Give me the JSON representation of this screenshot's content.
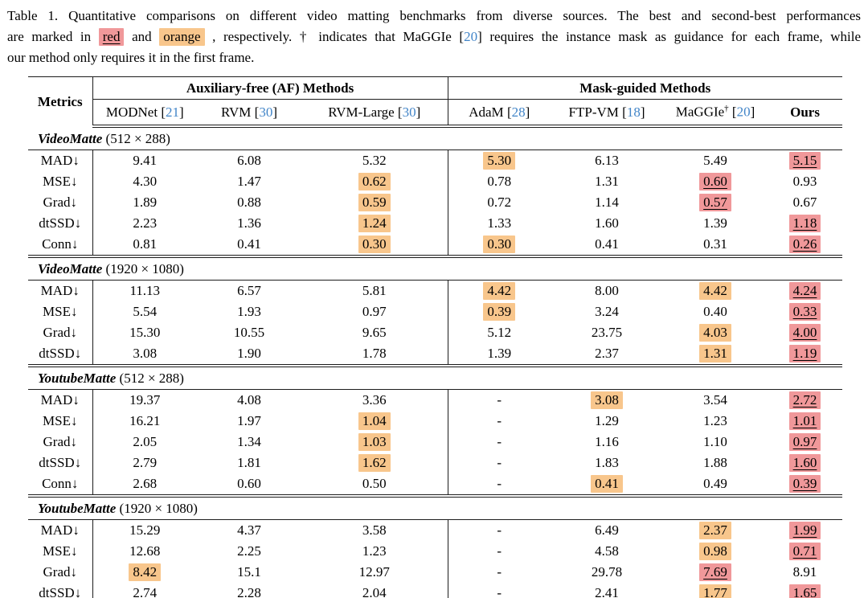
{
  "colors": {
    "highlight_best_red": "#f0989a",
    "highlight_second_orange": "#f8c68c",
    "citation_blue": "#4285c8"
  },
  "caption": {
    "lines": [
      [
        {
          "text": "Table 1. Quantitative comparisons on different video matting benchmarks from diverse sources. The best and second-best performances"
        }
      ],
      [
        {
          "text": "are marked in "
        },
        {
          "text": "red",
          "style": "hl-red"
        },
        {
          "text": " and "
        },
        {
          "text": "orange",
          "style": "hl-orange"
        },
        {
          "text": " , respectively. † indicates that MaGGIe ["
        },
        {
          "text": "20",
          "style": "cite"
        },
        {
          "text": "] requires the instance mask as guidance for each frame, while"
        }
      ],
      [
        {
          "text": "our method only requires it in the first frame."
        }
      ]
    ]
  },
  "header": {
    "metrics_label": "Metrics",
    "groups": [
      {
        "label": "Auxiliary-free (AF) Methods",
        "span": 3
      },
      {
        "label": "Mask-guided Methods",
        "span": 4
      }
    ],
    "methods": [
      {
        "name": "MODNet",
        "cite": "21"
      },
      {
        "name": "RVM",
        "cite": "30"
      },
      {
        "name": "RVM-Large",
        "cite": "30"
      },
      {
        "name": "AdaM",
        "cite": "28"
      },
      {
        "name": "FTP-VM",
        "cite": "18"
      },
      {
        "name": "MaGGIe",
        "sup": "†",
        "cite": "20"
      },
      {
        "name": "Ours",
        "bold": true
      }
    ]
  },
  "sections": [
    {
      "name": "VideoMatte",
      "resolution": "(512 × 288)",
      "rows": [
        {
          "metric": "MAD↓",
          "cells": [
            {
              "v": "9.41"
            },
            {
              "v": "6.08"
            },
            {
              "v": "5.32"
            },
            {
              "v": "5.30",
              "hl": "orange"
            },
            {
              "v": "6.13"
            },
            {
              "v": "5.49"
            },
            {
              "v": "5.15",
              "hl": "red"
            }
          ]
        },
        {
          "metric": "MSE↓",
          "cells": [
            {
              "v": "4.30"
            },
            {
              "v": "1.47"
            },
            {
              "v": "0.62",
              "hl": "orange"
            },
            {
              "v": "0.78"
            },
            {
              "v": "1.31"
            },
            {
              "v": "0.60",
              "hl": "red"
            },
            {
              "v": "0.93"
            }
          ]
        },
        {
          "metric": "Grad↓",
          "cells": [
            {
              "v": "1.89"
            },
            {
              "v": "0.88"
            },
            {
              "v": "0.59",
              "hl": "orange"
            },
            {
              "v": "0.72"
            },
            {
              "v": "1.14"
            },
            {
              "v": "0.57",
              "hl": "red"
            },
            {
              "v": "0.67"
            }
          ]
        },
        {
          "metric": "dtSSD↓",
          "cells": [
            {
              "v": "2.23"
            },
            {
              "v": "1.36"
            },
            {
              "v": "1.24",
              "hl": "orange"
            },
            {
              "v": "1.33"
            },
            {
              "v": "1.60"
            },
            {
              "v": "1.39"
            },
            {
              "v": "1.18",
              "hl": "red"
            }
          ]
        },
        {
          "metric": "Conn↓",
          "cells": [
            {
              "v": "0.81"
            },
            {
              "v": "0.41"
            },
            {
              "v": "0.30",
              "hl": "orange"
            },
            {
              "v": "0.30",
              "hl": "orange"
            },
            {
              "v": "0.41"
            },
            {
              "v": "0.31"
            },
            {
              "v": "0.26",
              "hl": "red"
            }
          ]
        }
      ]
    },
    {
      "name": "VideoMatte",
      "resolution": "(1920 × 1080)",
      "rows": [
        {
          "metric": "MAD↓",
          "cells": [
            {
              "v": "11.13"
            },
            {
              "v": "6.57"
            },
            {
              "v": "5.81"
            },
            {
              "v": "4.42",
              "hl": "orange"
            },
            {
              "v": "8.00"
            },
            {
              "v": "4.42",
              "hl": "orange"
            },
            {
              "v": "4.24",
              "hl": "red"
            }
          ]
        },
        {
          "metric": "MSE↓",
          "cells": [
            {
              "v": "5.54"
            },
            {
              "v": "1.93"
            },
            {
              "v": "0.97"
            },
            {
              "v": "0.39",
              "hl": "orange"
            },
            {
              "v": "3.24"
            },
            {
              "v": "0.40"
            },
            {
              "v": "0.33",
              "hl": "red"
            }
          ]
        },
        {
          "metric": "Grad↓",
          "cells": [
            {
              "v": "15.30"
            },
            {
              "v": "10.55"
            },
            {
              "v": "9.65"
            },
            {
              "v": "5.12"
            },
            {
              "v": "23.75"
            },
            {
              "v": "4.03",
              "hl": "orange"
            },
            {
              "v": "4.00",
              "hl": "red"
            }
          ]
        },
        {
          "metric": "dtSSD↓",
          "cells": [
            {
              "v": "3.08"
            },
            {
              "v": "1.90"
            },
            {
              "v": "1.78"
            },
            {
              "v": "1.39"
            },
            {
              "v": "2.37"
            },
            {
              "v": "1.31",
              "hl": "orange"
            },
            {
              "v": "1.19",
              "hl": "red"
            }
          ]
        }
      ]
    },
    {
      "name": "YoutubeMatte",
      "resolution": "(512 × 288)",
      "rows": [
        {
          "metric": "MAD↓",
          "cells": [
            {
              "v": "19.37"
            },
            {
              "v": "4.08"
            },
            {
              "v": "3.36"
            },
            {
              "v": "-"
            },
            {
              "v": "3.08",
              "hl": "orange"
            },
            {
              "v": "3.54"
            },
            {
              "v": "2.72",
              "hl": "red"
            }
          ]
        },
        {
          "metric": "MSE↓",
          "cells": [
            {
              "v": "16.21"
            },
            {
              "v": "1.97"
            },
            {
              "v": "1.04",
              "hl": "orange"
            },
            {
              "v": "-"
            },
            {
              "v": "1.29"
            },
            {
              "v": "1.23"
            },
            {
              "v": "1.01",
              "hl": "red"
            }
          ]
        },
        {
          "metric": "Grad↓",
          "cells": [
            {
              "v": "2.05"
            },
            {
              "v": "1.34"
            },
            {
              "v": "1.03",
              "hl": "orange"
            },
            {
              "v": "-"
            },
            {
              "v": "1.16"
            },
            {
              "v": "1.10"
            },
            {
              "v": "0.97",
              "hl": "red"
            }
          ]
        },
        {
          "metric": "dtSSD↓",
          "cells": [
            {
              "v": "2.79"
            },
            {
              "v": "1.81"
            },
            {
              "v": "1.62",
              "hl": "orange"
            },
            {
              "v": "-"
            },
            {
              "v": "1.83"
            },
            {
              "v": "1.88"
            },
            {
              "v": "1.60",
              "hl": "red"
            }
          ]
        },
        {
          "metric": "Conn↓",
          "cells": [
            {
              "v": "2.68"
            },
            {
              "v": "0.60"
            },
            {
              "v": "0.50"
            },
            {
              "v": "-"
            },
            {
              "v": "0.41",
              "hl": "orange"
            },
            {
              "v": "0.49"
            },
            {
              "v": "0.39",
              "hl": "red"
            }
          ]
        }
      ]
    },
    {
      "name": "YoutubeMatte",
      "resolution": "(1920 × 1080)",
      "rows": [
        {
          "metric": "MAD↓",
          "cells": [
            {
              "v": "15.29"
            },
            {
              "v": "4.37"
            },
            {
              "v": "3.58"
            },
            {
              "v": "-"
            },
            {
              "v": "6.49"
            },
            {
              "v": "2.37",
              "hl": "orange"
            },
            {
              "v": "1.99",
              "hl": "red"
            }
          ]
        },
        {
          "metric": "MSE↓",
          "cells": [
            {
              "v": "12.68"
            },
            {
              "v": "2.25"
            },
            {
              "v": "1.23"
            },
            {
              "v": "-"
            },
            {
              "v": "4.58"
            },
            {
              "v": "0.98",
              "hl": "orange"
            },
            {
              "v": "0.71",
              "hl": "red"
            }
          ]
        },
        {
          "metric": "Grad↓",
          "cells": [
            {
              "v": "8.42",
              "hl": "orange"
            },
            {
              "v": "15.1"
            },
            {
              "v": "12.97"
            },
            {
              "v": "-"
            },
            {
              "v": "29.78"
            },
            {
              "v": "7.69",
              "hl": "red"
            },
            {
              "v": "8.91"
            }
          ]
        },
        {
          "metric": "dtSSD↓",
          "cells": [
            {
              "v": "2.74"
            },
            {
              "v": "2.28"
            },
            {
              "v": "2.04"
            },
            {
              "v": "-"
            },
            {
              "v": "2.41"
            },
            {
              "v": "1.77",
              "hl": "orange"
            },
            {
              "v": "1.65",
              "hl": "red"
            }
          ]
        }
      ]
    }
  ]
}
